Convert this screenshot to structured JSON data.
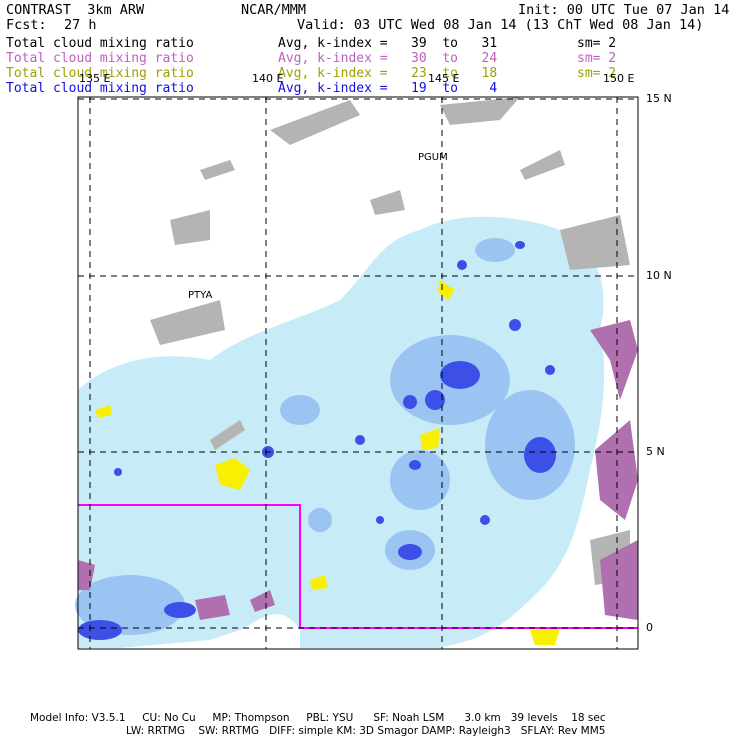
{
  "header": {
    "left_title": "CONTRAST  3km ARW",
    "center_title": "NCAR/MMM",
    "init": "Init: 00 UTC Tue 07 Jan 14",
    "fcst_label": "Fcst:",
    "fcst_value": "27 h",
    "valid": "Valid: 03 UTC Wed 08 Jan 14 (13 ChT Wed 08 Jan 14)"
  },
  "legend": [
    {
      "field": "Total cloud mixing ratio",
      "stat": "Avg, k-index =   39  to   31",
      "smooth": "sm= 2",
      "color": "#000000"
    },
    {
      "field": "Total cloud mixing ratio",
      "stat": "Avg, k-index =   30  to   24",
      "smooth": "sm= 2",
      "color": "#c060c0"
    },
    {
      "field": "Total cloud mixing ratio",
      "stat": "Avg, k-index =   23  to   18",
      "smooth": "sm= 2",
      "color": "#a0a000"
    },
    {
      "field": "Total cloud mixing ratio",
      "stat": "Avg, k-index =   19  to    4",
      "smooth": "",
      "color": "#1010e0"
    }
  ],
  "axes": {
    "lon_labels": [
      "135 E",
      "140 E",
      "145 E",
      "150 E"
    ],
    "lat_labels": [
      "15 N",
      "10 N",
      "5 N",
      "0"
    ]
  },
  "stations": [
    "PGUM",
    "PTYA"
  ],
  "footer": {
    "line1": "Model Info: V3.5.1     CU: No Cu     MP: Thompson     PBL: YSU      SF: Noah LSM      3.0 km   39 levels    18 sec",
    "line2": "LW: RRTMG    SW: RRTMG   DIFF: simple KM: 3D Smagor DAMP: Rayleigh3   SFLAY: Rev MM5"
  },
  "colors": {
    "grid": "#000000",
    "domain_box": "#ff00ff",
    "cloud_light": "#c8ecf7",
    "cloud_mid": "#9cc4f2",
    "cloud_dark": "#3c50e8",
    "upper_grey": "#b4b4b4",
    "mid_purple": "#b070b0",
    "low_yellow": "#f8f000"
  }
}
